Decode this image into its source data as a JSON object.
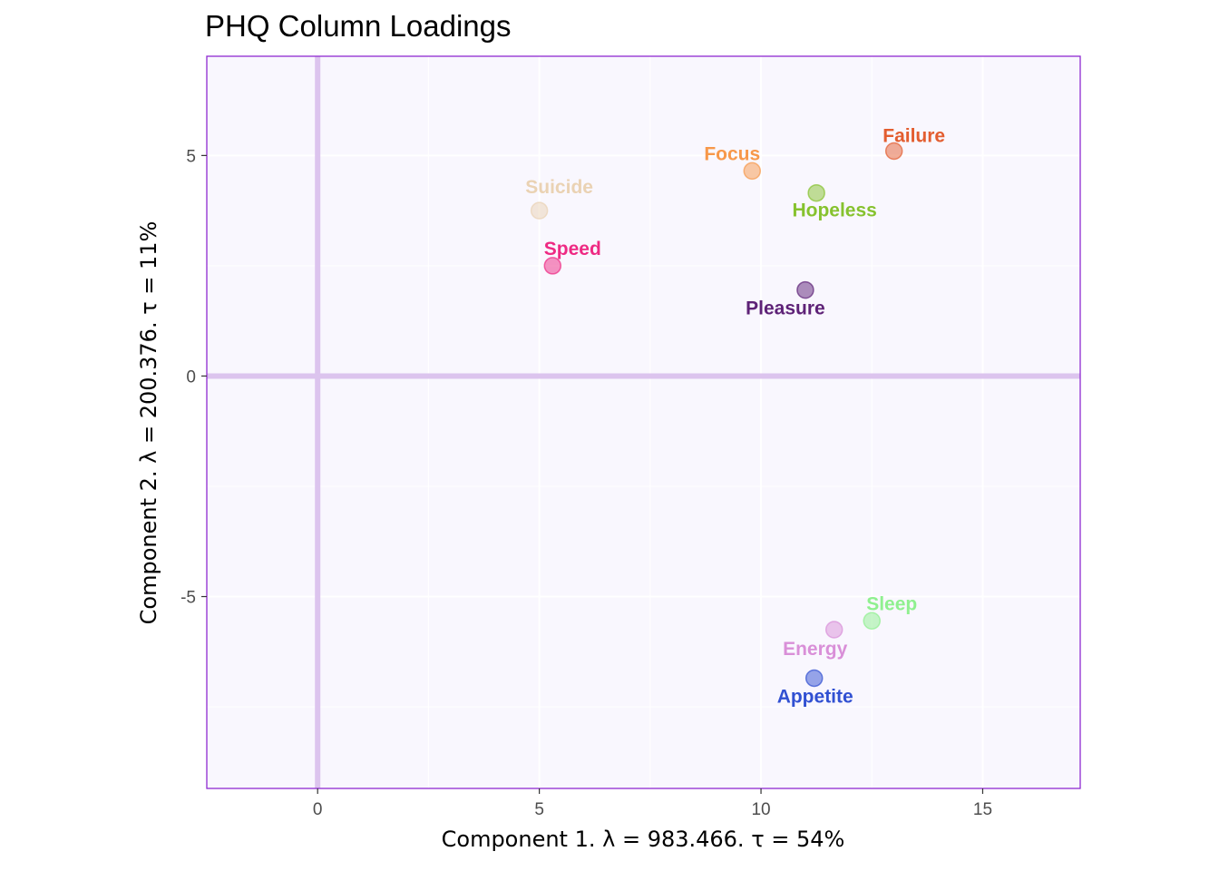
{
  "chart_data": {
    "type": "scatter",
    "title": "PHQ Column Loadings",
    "xlabel": "Component 1.   λ = 983.466.  τ = 54%",
    "ylabel": "Component 2.   λ = 200.376.  τ = 11%",
    "xlim": [
      -2.5,
      17.2
    ],
    "ylim": [
      -9.35,
      7.25
    ],
    "x_ticks": [
      0,
      5,
      10,
      15
    ],
    "x_tick_labels": [
      "0",
      "5",
      "10",
      "15"
    ],
    "y_ticks": [
      -5,
      0,
      5
    ],
    "y_tick_labels": [
      "-5",
      "0",
      "5"
    ],
    "grid": true,
    "points": [
      {
        "label": "Failure",
        "x": 13.0,
        "y": 5.1,
        "color": "#e35d2f"
      },
      {
        "label": "Focus",
        "x": 9.8,
        "y": 4.65,
        "color": "#f7984a"
      },
      {
        "label": "Hopeless",
        "x": 11.25,
        "y": 4.15,
        "color": "#86c22e"
      },
      {
        "label": "Suicide",
        "x": 5.0,
        "y": 3.75,
        "color": "#ead2b3"
      },
      {
        "label": "Speed",
        "x": 5.3,
        "y": 2.5,
        "color": "#ee2a83"
      },
      {
        "label": "Pleasure",
        "x": 11.0,
        "y": 1.95,
        "color": "#5e2277"
      },
      {
        "label": "Sleep",
        "x": 12.5,
        "y": -5.55,
        "color": "#8ff08f"
      },
      {
        "label": "Energy",
        "x": 11.65,
        "y": -5.75,
        "color": "#d98fd8"
      },
      {
        "label": "Appetite",
        "x": 11.2,
        "y": -6.85,
        "color": "#3150d2"
      }
    ],
    "colors": {
      "panel_background": "#f9f7fe",
      "panel_border": "#8f2ad1",
      "zero_lines": "#dcc4ee",
      "grid": "#ffffff"
    }
  }
}
